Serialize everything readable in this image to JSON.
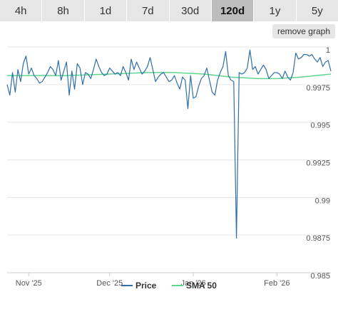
{
  "tabs": [
    {
      "label": "4h",
      "active": false
    },
    {
      "label": "8h",
      "active": false
    },
    {
      "label": "1d",
      "active": false
    },
    {
      "label": "7d",
      "active": false
    },
    {
      "label": "30d",
      "active": false
    },
    {
      "label": "120d",
      "active": true
    },
    {
      "label": "1y",
      "active": false
    },
    {
      "label": "5y",
      "active": false
    }
  ],
  "remove_graph_label": "remove graph",
  "chart_data": {
    "type": "line",
    "title": "",
    "xlabel": "",
    "ylabel": "",
    "ylim": [
      0.985,
      1.0
    ],
    "ytick_values": [
      0.985,
      0.9875,
      0.99,
      0.9925,
      0.995,
      0.9975,
      1
    ],
    "ytick_labels": [
      "0.985",
      "0.9875",
      "0.99",
      "0.9925",
      "0.995",
      "0.9975",
      "1"
    ],
    "xlim": [
      "2025-10-24",
      "2026-02-21"
    ],
    "xticks": [
      {
        "date": "2025-11-01",
        "label": "Nov '25"
      },
      {
        "date": "2025-12-01",
        "label": "Dec '25"
      },
      {
        "date": "2026-01-01",
        "label": "Jan '26"
      },
      {
        "date": "2026-02-01",
        "label": "Feb '26"
      }
    ],
    "grid": "horizontal",
    "legend_position": "bottom-center",
    "series": [
      {
        "name": "Price",
        "color": "#2f6ea8",
        "points": [
          [
            "2025-10-24",
            0.9975
          ],
          [
            "2025-10-25",
            0.9968
          ],
          [
            "2025-10-26",
            0.9983
          ],
          [
            "2025-10-27",
            0.997
          ],
          [
            "2025-10-28",
            0.9985
          ],
          [
            "2025-10-29",
            0.9977
          ],
          [
            "2025-10-30",
            0.9989
          ],
          [
            "2025-10-31",
            0.9994
          ],
          [
            "2025-11-01",
            0.9982
          ],
          [
            "2025-11-02",
            0.9986
          ],
          [
            "2025-11-03",
            0.9981
          ],
          [
            "2025-11-04",
            0.9979
          ],
          [
            "2025-11-05",
            0.9976
          ],
          [
            "2025-11-06",
            0.9977
          ],
          [
            "2025-11-07",
            0.998
          ],
          [
            "2025-11-08",
            0.9983
          ],
          [
            "2025-11-09",
            0.9987
          ],
          [
            "2025-11-10",
            0.9985
          ],
          [
            "2025-11-11",
            0.9981
          ],
          [
            "2025-11-12",
            0.9991
          ],
          [
            "2025-11-13",
            0.9978
          ],
          [
            "2025-11-14",
            0.9984
          ],
          [
            "2025-11-15",
            0.999
          ],
          [
            "2025-11-16",
            0.9968
          ],
          [
            "2025-11-17",
            0.9984
          ],
          [
            "2025-11-18",
            0.9972
          ],
          [
            "2025-11-19",
            0.9989
          ],
          [
            "2025-11-20",
            0.9986
          ],
          [
            "2025-11-21",
            0.9975
          ],
          [
            "2025-11-22",
            0.9983
          ],
          [
            "2025-11-23",
            0.9982
          ],
          [
            "2025-11-24",
            0.9979
          ],
          [
            "2025-11-25",
            0.9985
          ],
          [
            "2025-11-26",
            0.9992
          ],
          [
            "2025-11-27",
            0.9987
          ],
          [
            "2025-11-28",
            0.9983
          ],
          [
            "2025-11-29",
            0.9981
          ],
          [
            "2025-11-30",
            0.9982
          ],
          [
            "2025-12-01",
            0.9986
          ],
          [
            "2025-12-02",
            0.9984
          ],
          [
            "2025-12-03",
            0.9982
          ],
          [
            "2025-12-04",
            0.9983
          ],
          [
            "2025-12-05",
            0.9981
          ],
          [
            "2025-12-06",
            0.9987
          ],
          [
            "2025-12-07",
            0.9983
          ],
          [
            "2025-12-08",
            0.9978
          ],
          [
            "2025-12-09",
            0.9992
          ],
          [
            "2025-12-10",
            0.9985
          ],
          [
            "2025-12-11",
            0.999
          ],
          [
            "2025-12-12",
            0.9986
          ],
          [
            "2025-12-13",
            0.9982
          ],
          [
            "2025-12-14",
            0.9984
          ],
          [
            "2025-12-15",
            0.9987
          ],
          [
            "2025-12-16",
            0.9993
          ],
          [
            "2025-12-17",
            0.9985
          ],
          [
            "2025-12-18",
            0.9977
          ],
          [
            "2025-12-19",
            0.998
          ],
          [
            "2025-12-20",
            0.9982
          ],
          [
            "2025-12-21",
            0.9983
          ],
          [
            "2025-12-22",
            0.998
          ],
          [
            "2025-12-23",
            0.9977
          ],
          [
            "2025-12-24",
            0.9978
          ],
          [
            "2025-12-25",
            0.9981
          ],
          [
            "2025-12-26",
            0.9976
          ],
          [
            "2025-12-27",
            0.9972
          ],
          [
            "2025-12-28",
            0.998
          ],
          [
            "2025-12-29",
            0.9978
          ],
          [
            "2025-12-30",
            0.9959
          ],
          [
            "2025-12-31",
            0.9981
          ],
          [
            "2026-01-01",
            0.9966
          ],
          [
            "2026-01-02",
            0.9967
          ],
          [
            "2026-01-03",
            0.9974
          ],
          [
            "2026-01-04",
            0.9979
          ],
          [
            "2026-01-05",
            0.9981
          ],
          [
            "2026-01-06",
            0.9986
          ],
          [
            "2026-01-07",
            0.9978
          ],
          [
            "2026-01-08",
            0.997
          ],
          [
            "2026-01-09",
            0.9968
          ],
          [
            "2026-01-10",
            0.9978
          ],
          [
            "2026-01-11",
            0.9983
          ],
          [
            "2026-01-12",
            0.9987
          ],
          [
            "2026-01-13",
            0.9997
          ],
          [
            "2026-01-14",
            0.9981
          ],
          [
            "2026-01-15",
            0.9978
          ],
          [
            "2026-01-16",
            0.9977
          ],
          [
            "2026-01-17",
            0.9873
          ],
          [
            "2026-01-18",
            0.9983
          ],
          [
            "2026-01-19",
            0.9982
          ],
          [
            "2026-01-20",
            0.9983
          ],
          [
            "2026-01-21",
            0.9986
          ],
          [
            "2026-01-22",
            0.9998
          ],
          [
            "2026-01-23",
            0.9985
          ],
          [
            "2026-01-24",
            0.9987
          ],
          [
            "2026-01-25",
            0.9982
          ],
          [
            "2026-01-26",
            0.9985
          ],
          [
            "2026-01-27",
            0.9988
          ],
          [
            "2026-01-28",
            0.9985
          ],
          [
            "2026-01-29",
            0.9979
          ],
          [
            "2026-01-30",
            0.9981
          ],
          [
            "2026-01-31",
            0.9983
          ],
          [
            "2026-02-01",
            0.9983
          ],
          [
            "2026-02-02",
            0.9982
          ],
          [
            "2026-02-03",
            0.9979
          ],
          [
            "2026-02-04",
            0.9984
          ],
          [
            "2026-02-05",
            0.998
          ],
          [
            "2026-02-06",
            0.9978
          ],
          [
            "2026-02-07",
            0.9983
          ],
          [
            "2026-02-08",
            0.9996
          ],
          [
            "2026-02-09",
            0.9992
          ],
          [
            "2026-02-10",
            0.9993
          ],
          [
            "2026-02-11",
            0.9995
          ],
          [
            "2026-02-12",
            0.9995
          ],
          [
            "2026-02-13",
            0.9994
          ],
          [
            "2026-02-14",
            0.9995
          ],
          [
            "2026-02-15",
            0.9992
          ],
          [
            "2026-02-16",
            0.999
          ],
          [
            "2026-02-17",
            0.9993
          ],
          [
            "2026-02-18",
            0.9987
          ],
          [
            "2026-02-19",
            0.999
          ],
          [
            "2026-02-20",
            0.9991
          ],
          [
            "2026-02-21",
            0.9984
          ]
        ]
      },
      {
        "name": "SMA 50",
        "color": "#5ed68b",
        "points": [
          [
            "2025-10-24",
            0.9981
          ],
          [
            "2025-11-01",
            0.9981
          ],
          [
            "2025-11-15",
            0.9981
          ],
          [
            "2025-12-01",
            0.9982
          ],
          [
            "2025-12-15",
            0.9983
          ],
          [
            "2025-12-25",
            0.9983
          ],
          [
            "2026-01-05",
            0.9982
          ],
          [
            "2026-01-15",
            0.998
          ],
          [
            "2026-01-25",
            0.9979
          ],
          [
            "2026-02-01",
            0.9979
          ],
          [
            "2026-02-10",
            0.998
          ],
          [
            "2026-02-21",
            0.9982
          ]
        ]
      }
    ]
  }
}
